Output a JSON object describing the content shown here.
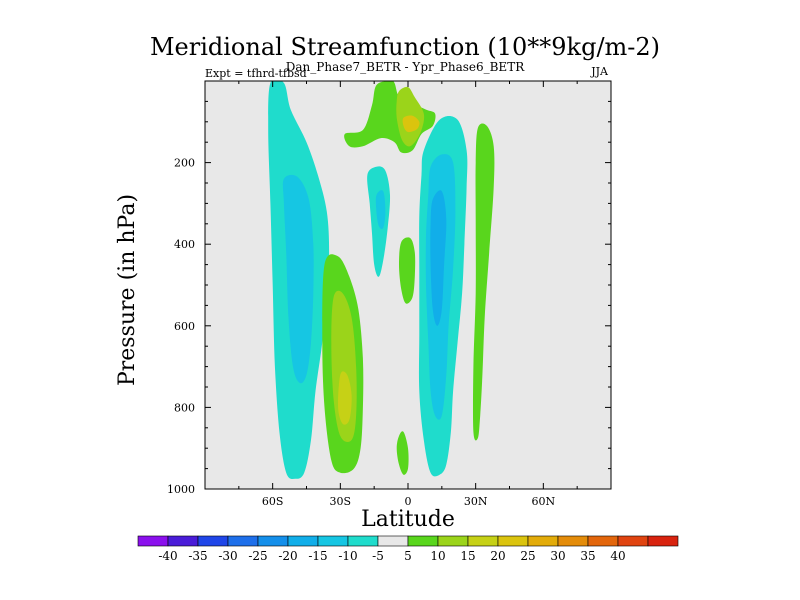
{
  "chart_data": {
    "type": "contour",
    "title": "Meridional Streamfunction (10**9kg/m-2)",
    "subtitle": "Dan_Phase7_BETR - Ypr_Phase6_BETR",
    "left_label": "Expt = tfhrd-tfbsd",
    "right_label": "JJA",
    "xlabel": "Latitude",
    "ylabel": "Pressure (in hPa)",
    "xlim": [
      -90,
      90
    ],
    "ylim": [
      1000,
      0
    ],
    "xticks": [
      {
        "value": -60,
        "label": "60S"
      },
      {
        "value": -30,
        "label": "30S"
      },
      {
        "value": 0,
        "label": "0"
      },
      {
        "value": 30,
        "label": "30N"
      },
      {
        "value": 60,
        "label": "60N"
      }
    ],
    "yticks": [
      {
        "value": 200,
        "label": "200"
      },
      {
        "value": 400,
        "label": "400"
      },
      {
        "value": 600,
        "label": "600"
      },
      {
        "value": 800,
        "label": "800"
      },
      {
        "value": 1000,
        "label": "1000"
      }
    ],
    "colorbar": {
      "colors": [
        "#8b10ed",
        "#4a1cd8",
        "#1f46e8",
        "#1e6fea",
        "#148fea",
        "#11aee9",
        "#16c6e3",
        "#1fdccc",
        "#e8e8e8",
        "#59d61d",
        "#9bd41a",
        "#c6d116",
        "#dbc40e",
        "#e3ac0a",
        "#e48c0a",
        "#e3660c",
        "#e04410",
        "#d8230f"
      ],
      "labels": [
        "-40",
        "-35",
        "-30",
        "-25",
        "-20",
        "-15",
        "-10",
        "-5",
        "5",
        "10",
        "15",
        "20",
        "25",
        "30",
        "35",
        "40"
      ]
    },
    "regions": [
      {
        "id": "sh-outer-negative",
        "value": -10,
        "outline": [
          [
            -61,
            5
          ],
          [
            -55,
            5
          ],
          [
            -52,
            70
          ],
          [
            -45,
            150
          ],
          [
            -40,
            230
          ],
          [
            -36,
            320
          ],
          [
            -35,
            420
          ],
          [
            -36,
            520
          ],
          [
            -38,
            640
          ],
          [
            -41,
            760
          ],
          [
            -43,
            880
          ],
          [
            -46,
            960
          ],
          [
            -50,
            975
          ],
          [
            -54,
            960
          ],
          [
            -57,
            860
          ],
          [
            -59,
            700
          ],
          [
            -60,
            500
          ],
          [
            -61,
            300
          ],
          [
            -62,
            120
          ]
        ]
      },
      {
        "id": "sh-outer-negative-core",
        "value": -15,
        "outline": [
          [
            -55,
            240
          ],
          [
            -49,
            235
          ],
          [
            -44,
            290
          ],
          [
            -42,
            400
          ],
          [
            -42,
            520
          ],
          [
            -43,
            640
          ],
          [
            -45,
            720
          ],
          [
            -48,
            740
          ],
          [
            -51,
            700
          ],
          [
            -53,
            580
          ],
          [
            -54,
            420
          ],
          [
            -55,
            300
          ]
        ]
      },
      {
        "id": "sh-subtropical-positive",
        "value": 5,
        "outline": [
          [
            -37,
            450
          ],
          [
            -31,
            430
          ],
          [
            -26,
            480
          ],
          [
            -22,
            560
          ],
          [
            -20,
            680
          ],
          [
            -20,
            800
          ],
          [
            -21,
            900
          ],
          [
            -24,
            950
          ],
          [
            -30,
            960
          ],
          [
            -34,
            930
          ],
          [
            -37,
            800
          ],
          [
            -38,
            640
          ]
        ]
      },
      {
        "id": "sh-subtropical-positive-core",
        "value": 10,
        "outline": [
          [
            -33,
            530
          ],
          [
            -29,
            520
          ],
          [
            -25,
            580
          ],
          [
            -23,
            700
          ],
          [
            -23,
            820
          ],
          [
            -25,
            880
          ],
          [
            -30,
            870
          ],
          [
            -33,
            780
          ],
          [
            -34,
            640
          ]
        ]
      },
      {
        "id": "sh-subtropical-positive-peak",
        "value": 15,
        "outline": [
          [
            -30,
            720
          ],
          [
            -27,
            720
          ],
          [
            -25,
            770
          ],
          [
            -26,
            830
          ],
          [
            -29,
            840
          ],
          [
            -31,
            800
          ]
        ]
      },
      {
        "id": "sh-narrow-negative",
        "value": -10,
        "outline": [
          [
            -18,
            230
          ],
          [
            -14,
            210
          ],
          [
            -10,
            220
          ],
          [
            -8,
            280
          ],
          [
            -9,
            360
          ],
          [
            -11,
            440
          ],
          [
            -13,
            480
          ],
          [
            -15,
            450
          ],
          [
            -16,
            370
          ],
          [
            -17,
            300
          ]
        ]
      },
      {
        "id": "sh-narrow-negative-core",
        "value": -15,
        "outline": [
          [
            -14,
            280
          ],
          [
            -11,
            270
          ],
          [
            -10,
            320
          ],
          [
            -11,
            360
          ],
          [
            -13,
            355
          ],
          [
            -14,
            320
          ]
        ]
      },
      {
        "id": "upper-positive-cell",
        "value": 5,
        "outline": [
          [
            -28,
            130
          ],
          [
            -20,
            120
          ],
          [
            -16,
            60
          ],
          [
            -14,
            10
          ],
          [
            -8,
            0
          ],
          [
            -6,
            5
          ],
          [
            -4,
            40
          ],
          [
            0,
            50
          ],
          [
            8,
            70
          ],
          [
            12,
            80
          ],
          [
            11,
            110
          ],
          [
            6,
            130
          ],
          [
            2,
            170
          ],
          [
            -3,
            175
          ],
          [
            -6,
            150
          ],
          [
            -12,
            140
          ],
          [
            -20,
            160
          ],
          [
            -26,
            160
          ]
        ]
      },
      {
        "id": "upper-positive-cell-core",
        "value": 10,
        "outline": [
          [
            -4,
            25
          ],
          [
            0,
            15
          ],
          [
            3,
            40
          ],
          [
            7,
            80
          ],
          [
            6,
            120
          ],
          [
            3,
            150
          ],
          [
            0,
            160
          ],
          [
            -3,
            140
          ],
          [
            -5,
            90
          ],
          [
            -5,
            50
          ]
        ]
      },
      {
        "id": "upper-positive-cell-peak",
        "value": 20,
        "outline": [
          [
            -2,
            90
          ],
          [
            2,
            85
          ],
          [
            5,
            100
          ],
          [
            4,
            118
          ],
          [
            0,
            125
          ],
          [
            -2,
            110
          ]
        ]
      },
      {
        "id": "equatorial-positive-mid",
        "value": 5,
        "outline": [
          [
            -3,
            395
          ],
          [
            1,
            385
          ],
          [
            3,
            420
          ],
          [
            3,
            480
          ],
          [
            2,
            530
          ],
          [
            -1,
            545
          ],
          [
            -3,
            510
          ],
          [
            -4,
            450
          ]
        ]
      },
      {
        "id": "equatorial-positive-low",
        "value": 5,
        "outline": [
          [
            -4,
            870
          ],
          [
            -2,
            860
          ],
          [
            0,
            900
          ],
          [
            0,
            950
          ],
          [
            -2,
            965
          ],
          [
            -4,
            940
          ],
          [
            -5,
            900
          ]
        ]
      },
      {
        "id": "nh-deep-negative",
        "value": -10,
        "outline": [
          [
            7,
            170
          ],
          [
            14,
            95
          ],
          [
            22,
            95
          ],
          [
            26,
            170
          ],
          [
            26,
            260
          ],
          [
            25,
            400
          ],
          [
            24,
            520
          ],
          [
            22,
            640
          ],
          [
            20,
            760
          ],
          [
            19,
            860
          ],
          [
            17,
            940
          ],
          [
            14,
            965
          ],
          [
            10,
            960
          ],
          [
            7,
            880
          ],
          [
            5,
            760
          ],
          [
            5,
            620
          ],
          [
            5,
            470
          ],
          [
            5,
            330
          ],
          [
            6,
            230
          ]
        ]
      },
      {
        "id": "nh-deep-negative-core",
        "value": -15,
        "outline": [
          [
            10,
            210
          ],
          [
            15,
            180
          ],
          [
            20,
            200
          ],
          [
            21,
            320
          ],
          [
            20,
            460
          ],
          [
            18,
            600
          ],
          [
            17,
            720
          ],
          [
            15,
            820
          ],
          [
            12,
            820
          ],
          [
            10,
            760
          ],
          [
            9,
            640
          ],
          [
            8,
            500
          ],
          [
            8,
            380
          ],
          [
            9,
            280
          ]
        ]
      },
      {
        "id": "nh-deep-negative-peak",
        "value": -20,
        "outline": [
          [
            11,
            290
          ],
          [
            15,
            270
          ],
          [
            17,
            340
          ],
          [
            16,
            450
          ],
          [
            15,
            560
          ],
          [
            13,
            600
          ],
          [
            11,
            560
          ],
          [
            10,
            450
          ],
          [
            10,
            350
          ]
        ]
      },
      {
        "id": "nh-outer-positive",
        "value": 5,
        "outline": [
          [
            31,
            115
          ],
          [
            35,
            110
          ],
          [
            38,
            160
          ],
          [
            38,
            260
          ],
          [
            36,
            420
          ],
          [
            34,
            580
          ],
          [
            33,
            720
          ],
          [
            32,
            820
          ],
          [
            31,
            875
          ],
          [
            29,
            860
          ],
          [
            29,
            700
          ],
          [
            30,
            520
          ],
          [
            30,
            340
          ],
          [
            30,
            200
          ]
        ]
      }
    ]
  }
}
